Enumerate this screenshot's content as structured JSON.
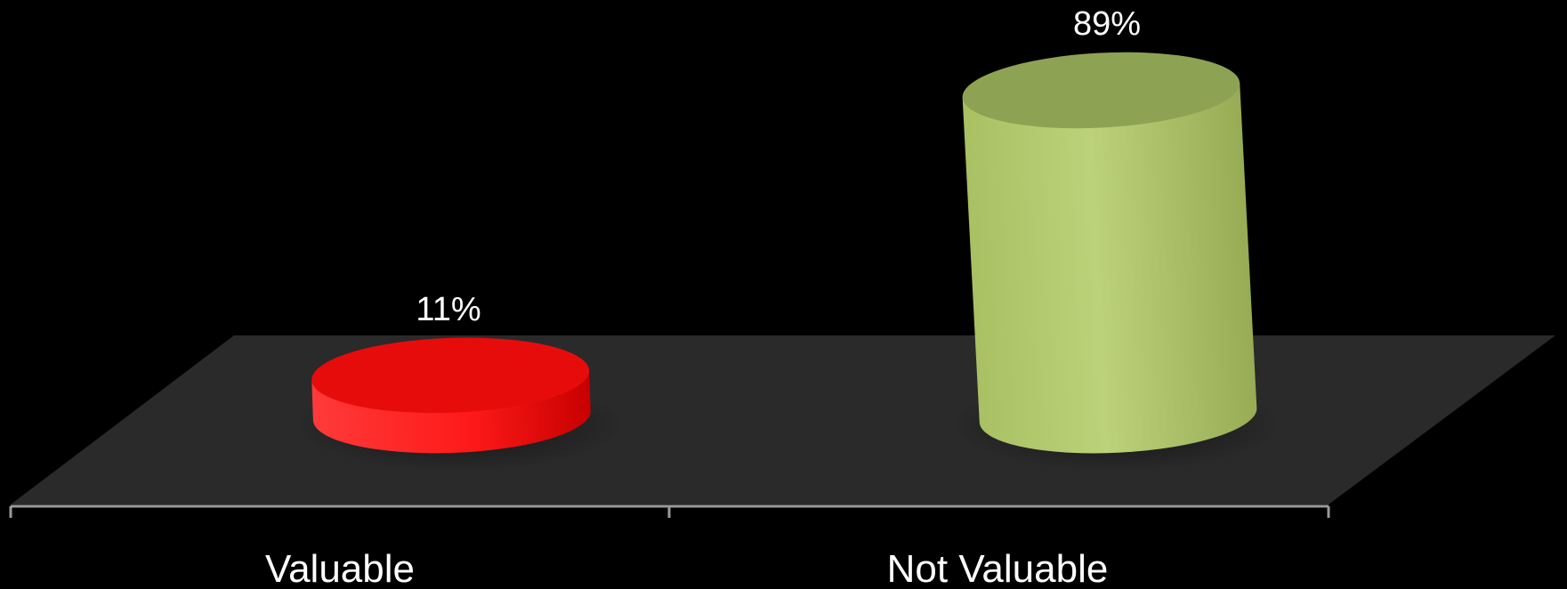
{
  "chart_data": {
    "type": "bar",
    "style": "3d-cylinder",
    "categories": [
      "Valuable",
      "Not Valuable"
    ],
    "values": [
      11,
      89
    ],
    "data_labels": [
      "11%",
      "89%"
    ],
    "colors": {
      "Valuable": "#ff1a1a",
      "Not Valuable": "#b5cc6e"
    },
    "floor_color": "#2a2a2a",
    "background": "#000000",
    "grid": false,
    "legend": "none",
    "ylim": [
      0,
      100
    ]
  }
}
